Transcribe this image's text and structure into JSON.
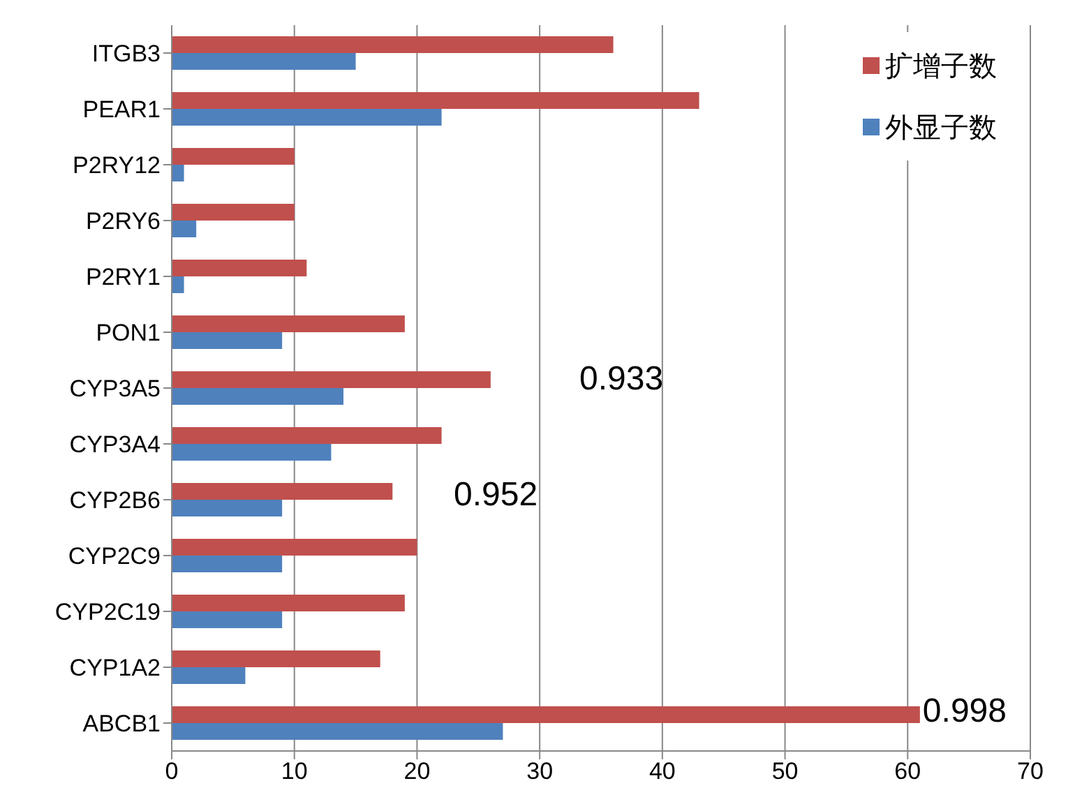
{
  "chart_data": {
    "type": "bar",
    "orientation": "horizontal",
    "categories": [
      "ITGB3",
      "PEAR1",
      "P2RY12",
      "P2RY6",
      "P2RY1",
      "PON1",
      "CYP3A5",
      "CYP3A4",
      "CYP2B6",
      "CYP2C9",
      "CYP2C19",
      "CYP1A2",
      "ABCB1"
    ],
    "series": [
      {
        "name": "扩增子数",
        "color": "#c0504d",
        "values": [
          36,
          43,
          10,
          10,
          11,
          19,
          26,
          22,
          18,
          20,
          19,
          17,
          61
        ]
      },
      {
        "name": "外显子数",
        "color": "#4f81bd",
        "values": [
          15,
          22,
          1,
          2,
          1,
          9,
          14,
          13,
          9,
          9,
          9,
          6,
          27
        ]
      }
    ],
    "xlim": [
      0,
      70
    ],
    "xticks": [
      0,
      10,
      20,
      30,
      40,
      50,
      60,
      70
    ],
    "grid": "x",
    "legend": "top right",
    "annotations": [
      "0.933",
      "0.952",
      {
        "text": "0.998",
        "x": 61,
        "y": "ABCB1"
      }
    ]
  }
}
